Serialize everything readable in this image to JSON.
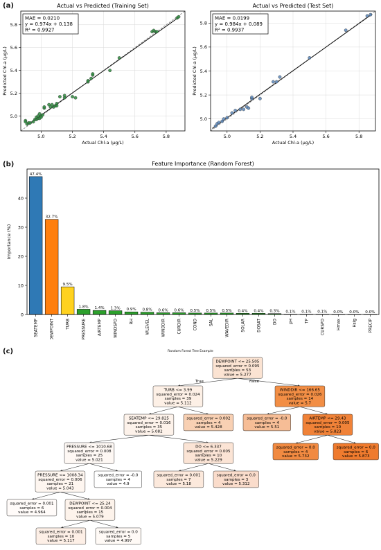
{
  "panels": {
    "a": "(a)",
    "b": "(b)",
    "c": "(c)"
  },
  "chart_data": [
    {
      "id": "train",
      "type": "scatter",
      "title": "Actual vs Predicted (Training Set)",
      "xlabel": "Actual Chl-a (µg/L)",
      "ylabel": "Predicted Chl-a (µg/L)",
      "xlim": [
        4.87,
        5.92
      ],
      "ylim": [
        4.87,
        5.92
      ],
      "xticks": [
        "5.0",
        "5.2",
        "5.4",
        "5.6",
        "5.8"
      ],
      "yticks": [
        "5.0",
        "5.2",
        "5.4",
        "5.6",
        "5.8"
      ],
      "grid": true,
      "stats": [
        "MAE = 0.0210",
        "y = 0.974x + 0.138",
        "R² = 0.9927"
      ],
      "fit": {
        "slope": 0.974,
        "intercept": 0.138
      },
      "point_color": "#2e8b3e",
      "points": [
        [
          4.9,
          4.96
        ],
        [
          4.9,
          4.95
        ],
        [
          4.91,
          4.93
        ],
        [
          4.92,
          4.94
        ],
        [
          4.93,
          4.94
        ],
        [
          4.95,
          4.95
        ],
        [
          4.96,
          4.97
        ],
        [
          4.97,
          4.99
        ],
        [
          4.97,
          4.97
        ],
        [
          4.98,
          4.98
        ],
        [
          4.98,
          5.0
        ],
        [
          4.99,
          4.98
        ],
        [
          4.99,
          5.02
        ],
        [
          5.0,
          5.0
        ],
        [
          5.0,
          4.99
        ],
        [
          5.01,
          5.01
        ],
        [
          5.02,
          5.07
        ],
        [
          5.02,
          5.08
        ],
        [
          5.05,
          5.1
        ],
        [
          5.06,
          5.08
        ],
        [
          5.07,
          5.1
        ],
        [
          5.08,
          5.08
        ],
        [
          5.09,
          5.09
        ],
        [
          5.1,
          5.11
        ],
        [
          5.1,
          5.09
        ],
        [
          5.12,
          5.17
        ],
        [
          5.15,
          5.16
        ],
        [
          5.15,
          5.18
        ],
        [
          5.2,
          5.17
        ],
        [
          5.22,
          5.16
        ],
        [
          5.3,
          5.3
        ],
        [
          5.3,
          5.31
        ],
        [
          5.32,
          5.33
        ],
        [
          5.33,
          5.36
        ],
        [
          5.33,
          5.37
        ],
        [
          5.44,
          5.4
        ],
        [
          5.5,
          5.51
        ],
        [
          5.71,
          5.74
        ],
        [
          5.72,
          5.75
        ],
        [
          5.73,
          5.74
        ],
        [
          5.74,
          5.74
        ],
        [
          5.87,
          5.86
        ],
        [
          5.88,
          5.87
        ]
      ]
    },
    {
      "id": "test",
      "type": "scatter",
      "title": "Actual vs Predicted (Test Set)",
      "xlabel": "Actual Chl-a (µg/L)",
      "ylabel": "Predicted Chl-a (µg/L)",
      "xlim": [
        4.9,
        5.9
      ],
      "ylim": [
        4.9,
        5.9
      ],
      "xticks": [
        "5.0",
        "5.2",
        "5.4",
        "5.6",
        "5.8"
      ],
      "yticks": [
        "5.0",
        "5.2",
        "5.4",
        "5.6",
        "5.8"
      ],
      "grid": true,
      "stats": [
        "MAE = 0.0199",
        "y = 0.984x + 0.089",
        "R² = 0.9937"
      ],
      "fit": {
        "slope": 0.984,
        "intercept": 0.089
      },
      "point_color": "#5b86b8",
      "points": [
        [
          4.93,
          4.94
        ],
        [
          4.94,
          4.96
        ],
        [
          4.95,
          4.97
        ],
        [
          4.97,
          4.98
        ],
        [
          4.98,
          5.0
        ],
        [
          5.0,
          5.01
        ],
        [
          5.03,
          5.05
        ],
        [
          5.05,
          5.07
        ],
        [
          5.08,
          5.08
        ],
        [
          5.1,
          5.08
        ],
        [
          5.12,
          5.1
        ],
        [
          5.13,
          5.09
        ],
        [
          5.15,
          5.17
        ],
        [
          5.15,
          5.18
        ],
        [
          5.2,
          5.17
        ],
        [
          5.28,
          5.31
        ],
        [
          5.3,
          5.31
        ],
        [
          5.32,
          5.35
        ],
        [
          5.5,
          5.51
        ],
        [
          5.72,
          5.74
        ],
        [
          5.85,
          5.86
        ],
        [
          5.87,
          5.87
        ]
      ]
    },
    {
      "id": "importance",
      "type": "bar",
      "title": "Feature Importance (Random Forest)",
      "xlabel": "",
      "ylabel": "Importance (%)",
      "ylim": [
        0,
        50
      ],
      "yticks": [
        0,
        10,
        20,
        30,
        40
      ],
      "categories": [
        "SEATEMP",
        "DEWPOINT",
        "TURB",
        "PRESSURE",
        "AIRTEMP",
        "WINDSPD",
        "RH",
        "WLEVEL",
        "WINDDIR",
        "CURDIR",
        "COND",
        "SAL",
        "WAVEDIR",
        "SOLAR",
        "DOSAT",
        "DO",
        "pH",
        "TP",
        "CURSPD",
        "Hmax",
        "Hsig",
        "PRECIP"
      ],
      "values": [
        47.4,
        32.7,
        9.5,
        1.8,
        1.4,
        1.3,
        0.9,
        0.8,
        0.6,
        0.6,
        0.5,
        0.5,
        0.5,
        0.4,
        0.4,
        0.3,
        0.1,
        0.1,
        0.1,
        0.0,
        0.0,
        0.0
      ],
      "labels": [
        "47.4%",
        "32.7%",
        "9.5%",
        "1.8%",
        "1.4%",
        "1.3%",
        "0.9%",
        "0.8%",
        "0.6%",
        "0.6%",
        "0.5%",
        "0.5%",
        "0.5%",
        "0.4%",
        "0.4%",
        "0.3%",
        "0.1%",
        "0.1%",
        "0.1%",
        "0.0%",
        "0.0%",
        "0.0%"
      ],
      "colors": [
        "#2f79b5",
        "#ff7f0e",
        "#ffd21f",
        "#2ca02c",
        "#2ca02c",
        "#2ca02c",
        "#2ca02c",
        "#2ca02c",
        "#2ca02c",
        "#2ca02c",
        "#2ca02c",
        "#2ca02c",
        "#2ca02c",
        "#2ca02c",
        "#2ca02c",
        "#2ca02c",
        "#2ca02c",
        "#2ca02c",
        "#2ca02c",
        "#2ca02c",
        "#2ca02c",
        "#2ca02c"
      ]
    }
  ],
  "tree": {
    "title": "Random Forest Tree Example",
    "edge_labels": {
      "true": "True",
      "false": "False"
    },
    "nodes": [
      {
        "id": "n0",
        "lines": [
          "DEWPOINT <= 25.505",
          "squared_error = 0.095",
          "samples = 53",
          "value = 5.277"
        ],
        "fill": "#fbe3d2"
      },
      {
        "id": "n1",
        "lines": [
          "TURB <= 3.99",
          "squared_error = 0.024",
          "samples = 39",
          "value = 5.112"
        ],
        "fill": "#fdf0e6"
      },
      {
        "id": "n2",
        "lines": [
          "WINDDIR <= 166.65",
          "squared_error = 0.026",
          "samples = 14",
          "value = 5.7"
        ],
        "fill": "#f28e45"
      },
      {
        "id": "n3",
        "lines": [
          "SEATEMP <= 29.825",
          "squared_error = 0.016",
          "samples = 35",
          "value = 5.082"
        ],
        "fill": "#fdf2ea"
      },
      {
        "id": "n4",
        "lines": [
          "squared_error = 0.002",
          "samples = 4",
          "value = 5.428"
        ],
        "fill": "#f8d0b3"
      },
      {
        "id": "n5",
        "lines": [
          "squared_error = -0.0",
          "samples = 4",
          "value = 5.51"
        ],
        "fill": "#f6bd96"
      },
      {
        "id": "n6",
        "lines": [
          "AIRTEMP <= 29.43",
          "squared_error = 0.005",
          "samples = 10",
          "value = 5.823"
        ],
        "fill": "#f08238"
      },
      {
        "id": "n7",
        "lines": [
          "PRESSURE <= 1010.68",
          "squared_error = 0.008",
          "samples = 25",
          "value = 5.021"
        ],
        "fill": "#fef8f4"
      },
      {
        "id": "n8",
        "lines": [
          "DO <= 6.337",
          "squared_error = 0.005",
          "samples = 10",
          "value = 5.229"
        ],
        "fill": "#fbe4d5"
      },
      {
        "id": "n9",
        "lines": [
          "squared_error = 0.0",
          "samples = 4",
          "value = 5.732"
        ],
        "fill": "#f18a41"
      },
      {
        "id": "n10",
        "lines": [
          "squared_error = 0.0",
          "samples = 6",
          "value = 5.873"
        ],
        "fill": "#ef7b2e"
      },
      {
        "id": "n11",
        "lines": [
          "PRESSURE <= 1008.34",
          "squared_error = 0.006",
          "samples = 21",
          "value = 5.043"
        ],
        "fill": "#fef6f0"
      },
      {
        "id": "n12",
        "lines": [
          "squared_error = -0.0",
          "samples = 4",
          "value = 4.9"
        ],
        "fill": "#ffffff"
      },
      {
        "id": "n13",
        "lines": [
          "squared_error = 0.001",
          "samples = 7",
          "value = 5.18"
        ],
        "fill": "#fce9dc"
      },
      {
        "id": "n14",
        "lines": [
          "squared_error = 0.0",
          "samples = 3",
          "value = 5.312"
        ],
        "fill": "#fadccb"
      },
      {
        "id": "n15",
        "lines": [
          "squared_error = 0.001",
          "samples = 6",
          "value = 4.964"
        ],
        "fill": "#fffbf9"
      },
      {
        "id": "n16",
        "lines": [
          "DEWPOINT <= 25.24",
          "squared_error = 0.004",
          "samples = 15",
          "value = 5.079"
        ],
        "fill": "#fdf3eb"
      },
      {
        "id": "n17",
        "lines": [
          "squared_error = 0.001",
          "samples = 10",
          "value = 5.117"
        ],
        "fill": "#fdefe6"
      },
      {
        "id": "n18",
        "lines": [
          "squared_error = 0.0",
          "samples = 5",
          "value = 4.997"
        ],
        "fill": "#fffaf6"
      }
    ]
  }
}
